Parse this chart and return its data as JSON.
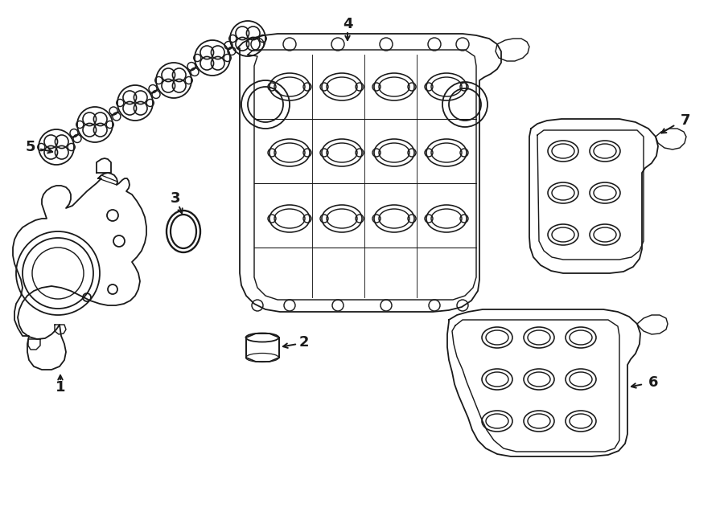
{
  "bg_color": "#ffffff",
  "line_color": "#1a1a1a",
  "line_width": 1.3,
  "fig_width": 9.0,
  "fig_height": 6.62,
  "dpi": 100
}
